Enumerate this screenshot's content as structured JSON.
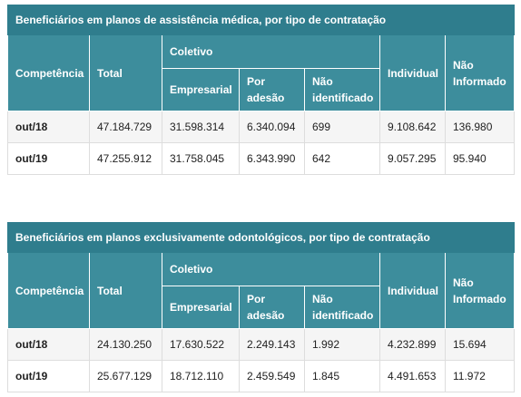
{
  "tables": [
    {
      "title": "Beneficiários em planos de assistência médica, por tipo de contratação",
      "headers": {
        "competencia": "Competência",
        "total": "Total",
        "coletivo": "Coletivo",
        "empresarial": "Empresarial",
        "por_adesao": "Por adesão",
        "nao_identificado": "Não identificado",
        "individual": "Individual",
        "nao_informado": "Não Informado"
      },
      "rows": [
        [
          "out/18",
          "47.184.729",
          "31.598.314",
          "6.340.094",
          "699",
          "9.108.642",
          "136.980"
        ],
        [
          "out/19",
          "47.255.912",
          "31.758.045",
          "6.343.990",
          "642",
          "9.057.295",
          "95.940"
        ]
      ]
    },
    {
      "title": "Beneficiários em planos exclusivamente odontológicos, por tipo de contratação",
      "headers": {
        "competencia": "Competência",
        "total": "Total",
        "coletivo": "Coletivo",
        "empresarial": "Empresarial",
        "por_adesao": "Por adesão",
        "nao_identificado": "Não identificado",
        "individual": "Individual",
        "nao_informado": "Não Informado"
      },
      "rows": [
        [
          "out/18",
          "24.130.250",
          "17.630.522",
          "2.249.143",
          "1.992",
          "4.232.899",
          "15.694"
        ],
        [
          "out/19",
          "25.677.129",
          "18.712.110",
          "2.459.549",
          "1.845",
          "4.491.653",
          "11.972"
        ]
      ]
    }
  ]
}
